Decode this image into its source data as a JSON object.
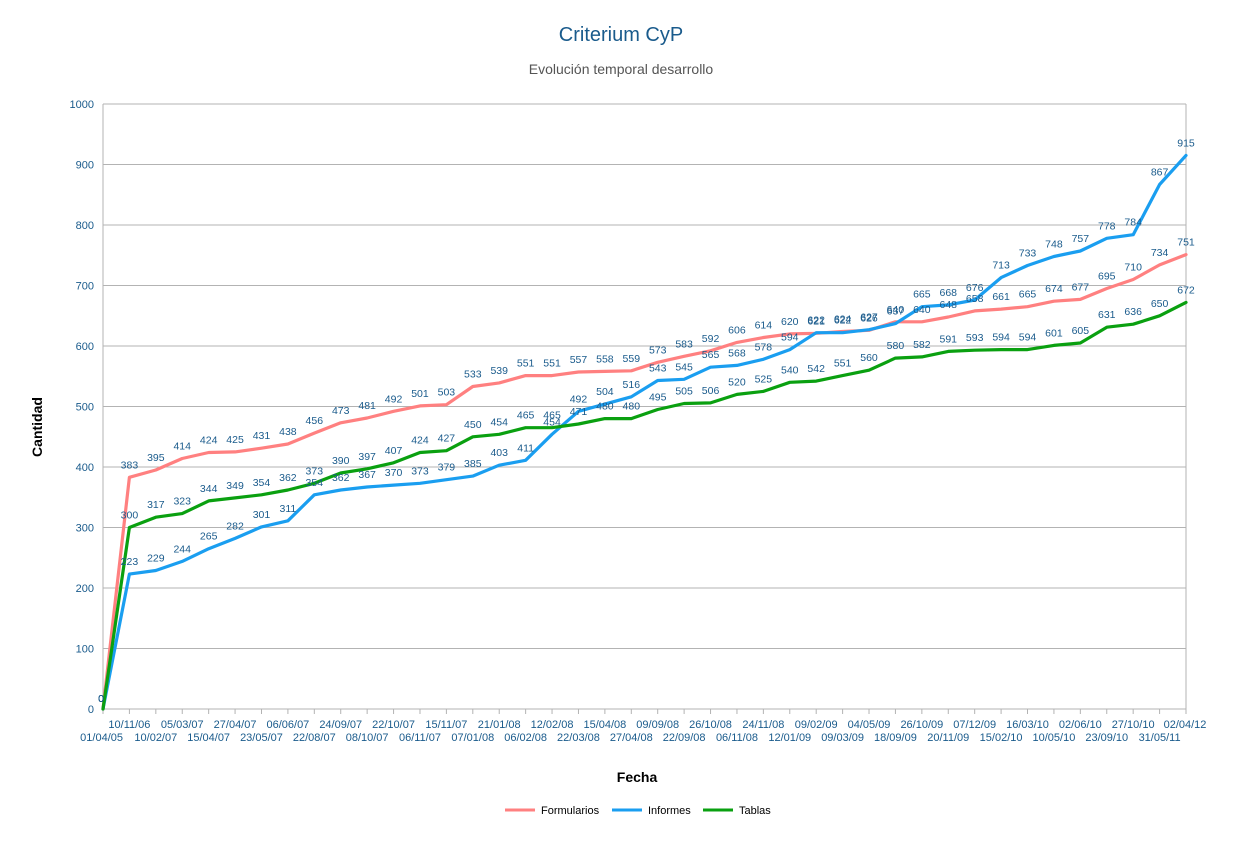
{
  "chart_data": {
    "type": "line",
    "title": "Criterium CyP",
    "subtitle": "Evolución temporal desarrollo",
    "xlabel": "Fecha",
    "ylabel": "Cantidad",
    "ylim": [
      0,
      1000
    ],
    "yticks": [
      0,
      100,
      200,
      300,
      400,
      500,
      600,
      700,
      800,
      900,
      1000
    ],
    "grid": true,
    "legend_position": "bottom",
    "categories": [
      "01/04/05",
      "10/11/06",
      "10/02/07",
      "05/03/07",
      "15/04/07",
      "27/04/07",
      "23/05/07",
      "06/06/07",
      "22/08/07",
      "24/09/07",
      "08/10/07",
      "22/10/07",
      "06/11/07",
      "15/11/07",
      "07/01/08",
      "21/01/08",
      "06/02/08",
      "12/02/08",
      "22/03/08",
      "15/04/08",
      "27/04/08",
      "09/09/08",
      "22/09/08",
      "26/10/08",
      "06/11/08",
      "24/11/08",
      "12/01/09",
      "09/02/09",
      "09/03/09",
      "04/05/09",
      "18/09/09",
      "26/10/09",
      "20/11/09",
      "07/12/09",
      "15/02/10",
      "16/03/10",
      "10/05/10",
      "02/06/10",
      "23/09/10",
      "27/10/10",
      "31/05/11",
      "02/04/12"
    ],
    "series": [
      {
        "name": "Formularios",
        "color": "#ff8080",
        "label_pos": "above",
        "values": [
          0,
          383,
          395,
          414,
          424,
          425,
          431,
          438,
          456,
          473,
          481,
          492,
          501,
          503,
          533,
          539,
          551,
          551,
          557,
          558,
          559,
          573,
          583,
          592,
          606,
          614,
          620,
          621,
          624,
          626,
          640,
          640,
          648,
          658,
          661,
          665,
          674,
          677,
          695,
          710,
          734,
          751
        ]
      },
      {
        "name": "Informes",
        "color": "#1a9ef0",
        "label_pos": "above",
        "values": [
          0,
          223,
          229,
          244,
          265,
          282,
          301,
          311,
          354,
          362,
          367,
          370,
          373,
          379,
          385,
          403,
          411,
          454,
          492,
          504,
          516,
          543,
          545,
          565,
          568,
          578,
          594,
          622,
          622,
          627,
          637,
          665,
          668,
          676,
          713,
          733,
          748,
          757,
          778,
          784,
          867,
          915
        ]
      },
      {
        "name": "Tablas",
        "color": "#0aa010",
        "label_pos": "above",
        "values": [
          0,
          300,
          317,
          323,
          344,
          349,
          354,
          362,
          373,
          390,
          397,
          407,
          424,
          427,
          450,
          454,
          465,
          465,
          471,
          480,
          480,
          495,
          505,
          506,
          520,
          525,
          540,
          542,
          551,
          560,
          580,
          582,
          591,
          593,
          594,
          594,
          601,
          605,
          631,
          636,
          650,
          672
        ]
      }
    ]
  }
}
